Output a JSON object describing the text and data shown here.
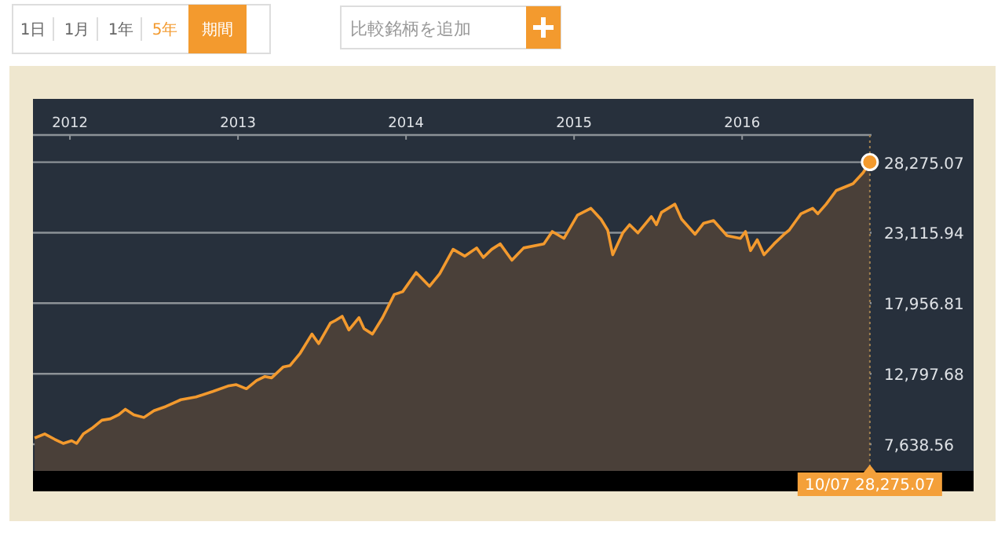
{
  "chart_data": {
    "type": "area",
    "color": "#f39a2e",
    "x": [
      2011.79,
      2011.85,
      2011.91,
      2011.96,
      2012.01,
      2012.04,
      2012.08,
      2012.13,
      2012.19,
      2012.24,
      2012.29,
      2012.33,
      2012.38,
      2012.44,
      2012.5,
      2012.57,
      2012.66,
      2012.75,
      2012.85,
      2012.94,
      2012.99,
      2013.05,
      2013.11,
      2013.16,
      2013.2,
      2013.27,
      2013.31,
      2013.37,
      2013.44,
      2013.48,
      2013.55,
      2013.58,
      2013.62,
      2013.66,
      2013.72,
      2013.75,
      2013.8,
      2013.86,
      2013.93,
      2013.98,
      2014.06,
      2014.14,
      2014.2,
      2014.28,
      2014.35,
      2014.42,
      2014.46,
      2014.51,
      2014.56,
      2014.63,
      2014.7,
      2014.82,
      2014.87,
      2014.94,
      2015.02,
      2015.1,
      2015.16,
      2015.2,
      2015.23,
      2015.29,
      2015.33,
      2015.38,
      2015.46,
      2015.49,
      2015.52,
      2015.6,
      2015.64,
      2015.72,
      2015.77,
      2015.83,
      2015.91,
      2015.99,
      2016.02,
      2016.05,
      2016.09,
      2016.13,
      2016.19,
      2016.25,
      2016.28,
      2016.35,
      2016.42,
      2016.45,
      2016.5,
      2016.56,
      2016.66,
      2016.72,
      2016.76
    ],
    "values": [
      8100,
      8400,
      8000,
      7700,
      7900,
      7700,
      8400,
      8800,
      9400,
      9500,
      9800,
      10200,
      9800,
      9600,
      10100,
      10400,
      10900,
      11100,
      11500,
      11900,
      12000,
      11700,
      12300,
      12600,
      12500,
      13300,
      13400,
      14300,
      15700,
      15000,
      16500,
      16700,
      17000,
      16000,
      16900,
      16100,
      15700,
      16900,
      18600,
      18800,
      20200,
      19200,
      20100,
      21900,
      21400,
      22000,
      21300,
      21900,
      22300,
      21100,
      22000,
      22300,
      23200,
      22700,
      24400,
      24900,
      24100,
      23300,
      21500,
      23100,
      23700,
      23100,
      24300,
      23700,
      24600,
      25200,
      24100,
      23000,
      23800,
      24000,
      22900,
      22700,
      23200,
      21800,
      22600,
      21500,
      22300,
      23000,
      23300,
      24500,
      24900,
      24500,
      25200,
      26200,
      26700,
      27500,
      28275.07
    ],
    "xlim": [
      2011.78,
      2016.77
    ],
    "xticks": [
      2012,
      2013,
      2014,
      2015,
      2016
    ],
    "ylim": [
      5690,
      30260
    ],
    "yticks": [
      {
        "value": 7638.56,
        "label": "7,638.56"
      },
      {
        "value": 12797.68,
        "label": "12,797.68"
      },
      {
        "value": 17956.81,
        "label": "17,956.81"
      },
      {
        "value": 23115.94,
        "label": "23,115.94"
      },
      {
        "value": 28275.07,
        "label": "28,275.07"
      }
    ],
    "grid": "y",
    "ref_lines": [
      {
        "axis": "x",
        "value": 2016.76,
        "line_style": "dotted",
        "color": "#a08050"
      }
    ],
    "annotations": [
      "1日",
      "1月",
      "1年",
      "5年",
      "期間",
      "比較銘柄を追加",
      "10/07  28,275.07"
    ]
  }
}
